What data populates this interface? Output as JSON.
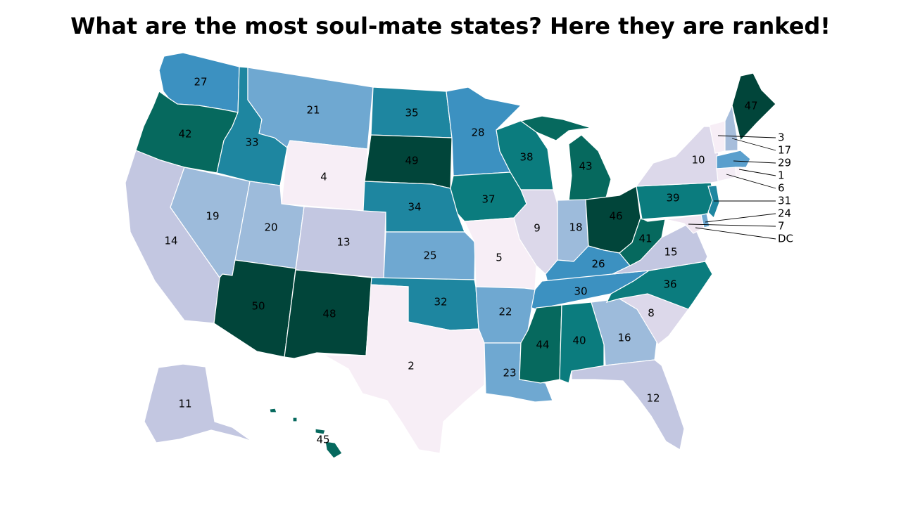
{
  "title": "What are the most soul-mate states? Here they are ranked!",
  "colors": {
    "scale": [
      "#f7eef6",
      "#dcd8ea",
      "#c3c7e1",
      "#9dbbdb",
      "#6fa8d1",
      "#3c91c1",
      "#1e86a0",
      "#0b7c7e",
      "#06695e",
      "#01453a"
    ]
  },
  "states": {
    "WA": "27",
    "OR": "42",
    "CA": "14",
    "NV": "19",
    "ID": "33",
    "MT": "21",
    "WY": "4",
    "UT": "20",
    "AZ": "50",
    "CO": "13",
    "NM": "48",
    "ND": "35",
    "SD": "49",
    "NE": "34",
    "KS": "25",
    "OK": "32",
    "TX": "2",
    "MN": "28",
    "IA": "37",
    "MO": "5",
    "AR": "22",
    "LA": "23",
    "WI": "38",
    "IL": "9",
    "MI": "43",
    "IN": "18",
    "OH": "46",
    "KY": "26",
    "TN": "30",
    "MS": "44",
    "AL": "40",
    "GA": "16",
    "FL": "12",
    "SC": "8",
    "NC": "36",
    "VA": "15",
    "WV": "41",
    "PA": "39",
    "NY": "10",
    "ME": "47",
    "AK": "11",
    "HI": "45"
  },
  "callouts": [
    {
      "id": "VT",
      "label": "3"
    },
    {
      "id": "NH",
      "label": "17"
    },
    {
      "id": "MA",
      "label": "29"
    },
    {
      "id": "RI",
      "label": "1"
    },
    {
      "id": "CT",
      "label": "6"
    },
    {
      "id": "NJ",
      "label": "31"
    },
    {
      "id": "DE",
      "label": "24"
    },
    {
      "id": "MD",
      "label": "7"
    },
    {
      "id": "DC",
      "label": "DC"
    }
  ]
}
